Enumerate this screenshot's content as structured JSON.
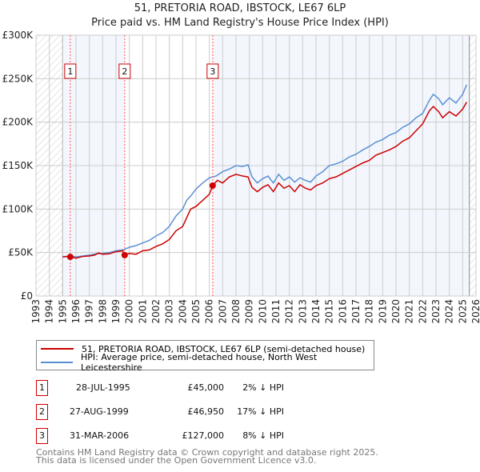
{
  "chart_data": {
    "type": "line",
    "title": "51, PRETORIA ROAD, IBSTOCK, LE67 6LP",
    "subtitle": "Price paid vs. HM Land Registry's House Price Index (HPI)",
    "xlim": [
      1993,
      2026
    ],
    "ylim": [
      0,
      300000
    ],
    "x_ticks": [
      "1993",
      "1994",
      "1995",
      "1996",
      "1997",
      "1998",
      "1999",
      "2000",
      "2001",
      "2002",
      "2003",
      "2004",
      "2005",
      "2006",
      "2007",
      "2008",
      "2009",
      "2010",
      "2011",
      "2012",
      "2013",
      "2014",
      "2015",
      "2016",
      "2017",
      "2018",
      "2019",
      "2020",
      "2021",
      "2022",
      "2023",
      "2024",
      "2025",
      "2026"
    ],
    "y_ticks": [
      {
        "v": 0,
        "label": "£0"
      },
      {
        "v": 50000,
        "label": "£50K"
      },
      {
        "v": 100000,
        "label": "£100K"
      },
      {
        "v": 150000,
        "label": "£150K"
      },
      {
        "v": 200000,
        "label": "£200K"
      },
      {
        "v": 250000,
        "label": "£250K"
      },
      {
        "v": 300000,
        "label": "£300K"
      }
    ],
    "grid": true,
    "series": [
      {
        "name": "51, PRETORIA ROAD, IBSTOCK, LE67 6LP (semi-detached house)",
        "color": "#cc0000",
        "points": [
          [
            1995.0,
            45000
          ],
          [
            1995.5,
            45500
          ],
          [
            1996.0,
            43500
          ],
          [
            1996.5,
            45500
          ],
          [
            1997.0,
            46000
          ],
          [
            1997.4,
            47000
          ],
          [
            1997.7,
            49500
          ],
          [
            1998.0,
            48000
          ],
          [
            1998.5,
            48500
          ],
          [
            1999.0,
            51000
          ],
          [
            1999.5,
            52000
          ],
          [
            1999.65,
            46950
          ],
          [
            2000.0,
            49000
          ],
          [
            2000.5,
            48000
          ],
          [
            2001.0,
            52000
          ],
          [
            2001.5,
            53000
          ],
          [
            2002.0,
            57000
          ],
          [
            2002.5,
            60000
          ],
          [
            2003.0,
            65000
          ],
          [
            2003.5,
            75000
          ],
          [
            2004.0,
            80000
          ],
          [
            2004.3,
            90000
          ],
          [
            2004.6,
            100000
          ],
          [
            2005.0,
            103000
          ],
          [
            2005.5,
            110000
          ],
          [
            2006.0,
            117000
          ],
          [
            2006.25,
            127000
          ],
          [
            2006.6,
            133000
          ],
          [
            2007.0,
            130000
          ],
          [
            2007.5,
            137000
          ],
          [
            2008.0,
            140000
          ],
          [
            2008.5,
            138000
          ],
          [
            2008.9,
            137000
          ],
          [
            2009.2,
            125000
          ],
          [
            2009.6,
            120000
          ],
          [
            2010.0,
            125000
          ],
          [
            2010.4,
            128000
          ],
          [
            2010.8,
            120000
          ],
          [
            2011.2,
            130000
          ],
          [
            2011.6,
            124000
          ],
          [
            2012.0,
            127000
          ],
          [
            2012.4,
            120000
          ],
          [
            2012.8,
            128000
          ],
          [
            2013.2,
            124000
          ],
          [
            2013.6,
            122000
          ],
          [
            2014.0,
            127000
          ],
          [
            2014.5,
            130000
          ],
          [
            2015.0,
            135000
          ],
          [
            2015.5,
            137000
          ],
          [
            2016.0,
            141000
          ],
          [
            2016.5,
            145000
          ],
          [
            2017.0,
            149000
          ],
          [
            2017.5,
            153000
          ],
          [
            2018.0,
            156000
          ],
          [
            2018.5,
            162000
          ],
          [
            2019.0,
            165000
          ],
          [
            2019.5,
            168000
          ],
          [
            2020.0,
            172000
          ],
          [
            2020.5,
            178000
          ],
          [
            2021.0,
            182000
          ],
          [
            2021.5,
            190000
          ],
          [
            2022.0,
            198000
          ],
          [
            2022.5,
            213000
          ],
          [
            2022.8,
            218000
          ],
          [
            2023.2,
            212000
          ],
          [
            2023.5,
            205000
          ],
          [
            2024.0,
            212000
          ],
          [
            2024.5,
            207000
          ],
          [
            2025.0,
            215000
          ],
          [
            2025.3,
            223000
          ]
        ]
      },
      {
        "name": "HPI: Average price, semi-detached house, North West Leicestershire",
        "color": "#5b8fd4",
        "points": [
          [
            1995.0,
            45000
          ],
          [
            1995.5,
            46000
          ],
          [
            1996.0,
            45000
          ],
          [
            1996.5,
            46000
          ],
          [
            1997.0,
            47000
          ],
          [
            1997.5,
            48500
          ],
          [
            1998.0,
            49000
          ],
          [
            1998.5,
            50000
          ],
          [
            1999.0,
            52000
          ],
          [
            1999.5,
            53000
          ],
          [
            2000.0,
            56000
          ],
          [
            2000.5,
            58000
          ],
          [
            2001.0,
            61000
          ],
          [
            2001.5,
            64000
          ],
          [
            2002.0,
            69000
          ],
          [
            2002.5,
            73000
          ],
          [
            2003.0,
            80000
          ],
          [
            2003.5,
            92000
          ],
          [
            2004.0,
            100000
          ],
          [
            2004.3,
            110000
          ],
          [
            2004.6,
            115000
          ],
          [
            2005.0,
            123000
          ],
          [
            2005.5,
            130000
          ],
          [
            2006.0,
            136000
          ],
          [
            2006.5,
            138000
          ],
          [
            2007.0,
            143000
          ],
          [
            2007.5,
            146000
          ],
          [
            2008.0,
            150000
          ],
          [
            2008.5,
            149000
          ],
          [
            2008.9,
            151000
          ],
          [
            2009.2,
            137000
          ],
          [
            2009.6,
            130000
          ],
          [
            2010.0,
            135000
          ],
          [
            2010.4,
            138000
          ],
          [
            2010.8,
            130000
          ],
          [
            2011.2,
            140000
          ],
          [
            2011.6,
            133000
          ],
          [
            2012.0,
            137000
          ],
          [
            2012.4,
            131000
          ],
          [
            2012.8,
            136000
          ],
          [
            2013.2,
            133000
          ],
          [
            2013.6,
            131000
          ],
          [
            2014.0,
            138000
          ],
          [
            2014.5,
            143000
          ],
          [
            2015.0,
            150000
          ],
          [
            2015.5,
            152000
          ],
          [
            2016.0,
            155000
          ],
          [
            2016.5,
            160000
          ],
          [
            2017.0,
            163000
          ],
          [
            2017.5,
            168000
          ],
          [
            2018.0,
            172000
          ],
          [
            2018.5,
            177000
          ],
          [
            2019.0,
            180000
          ],
          [
            2019.5,
            185000
          ],
          [
            2020.0,
            188000
          ],
          [
            2020.5,
            194000
          ],
          [
            2021.0,
            198000
          ],
          [
            2021.5,
            205000
          ],
          [
            2022.0,
            210000
          ],
          [
            2022.5,
            225000
          ],
          [
            2022.8,
            232000
          ],
          [
            2023.2,
            227000
          ],
          [
            2023.5,
            220000
          ],
          [
            2024.0,
            228000
          ],
          [
            2024.5,
            222000
          ],
          [
            2025.0,
            232000
          ],
          [
            2025.3,
            243000
          ]
        ]
      }
    ],
    "sales": [
      {
        "num": "1",
        "x": 1995.57,
        "value": 45000
      },
      {
        "num": "2",
        "x": 1999.65,
        "value": 46950
      },
      {
        "num": "3",
        "x": 2006.25,
        "value": 127000
      }
    ],
    "data_range": [
      1995,
      2025.5
    ]
  },
  "title": "51, PRETORIA ROAD, IBSTOCK, LE67 6LP",
  "subtitle": "Price paid vs. HM Land Registry's House Price Index (HPI)",
  "legend": {
    "property": "51, PRETORIA ROAD, IBSTOCK, LE67 6LP (semi-detached house)",
    "hpi": "HPI: Average price, semi-detached house, North West Leicestershire"
  },
  "transactions": [
    {
      "num": "1",
      "date": "28-JUL-1995",
      "price": "£45,000",
      "delta": "2% ↓ HPI"
    },
    {
      "num": "2",
      "date": "27-AUG-1999",
      "price": "£46,950",
      "delta": "17% ↓ HPI"
    },
    {
      "num": "3",
      "date": "31-MAR-2006",
      "price": "£127,000",
      "delta": "8% ↓ HPI"
    }
  ],
  "footer": {
    "line1": "Contains HM Land Registry data © Crown copyright and database right 2025.",
    "line2": "This data is licensed under the Open Government Licence v3.0."
  }
}
